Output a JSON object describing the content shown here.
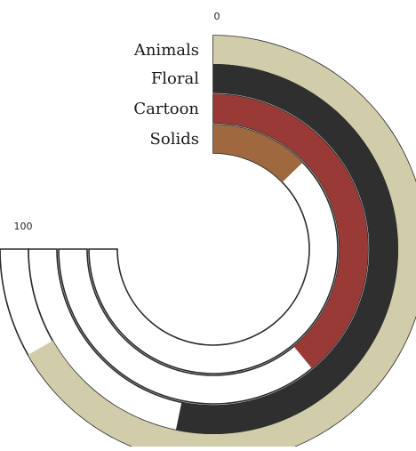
{
  "chart_data": {
    "type": "radial-bar",
    "categories": [
      "Animals",
      "Floral",
      "Cartoon",
      "Solids"
    ],
    "values": [
      89,
      71,
      52,
      17
    ],
    "axis_range": [
      0,
      100
    ],
    "tick_labels": [
      "0",
      "100"
    ],
    "colors": [
      "#d1ccaa",
      "#2f2f2f",
      "#9a3a36",
      "#a0683f"
    ],
    "track_color": "#ffffff",
    "track_stroke": "#2b2b2b",
    "title": "",
    "legend": "labels at start of each ring"
  }
}
